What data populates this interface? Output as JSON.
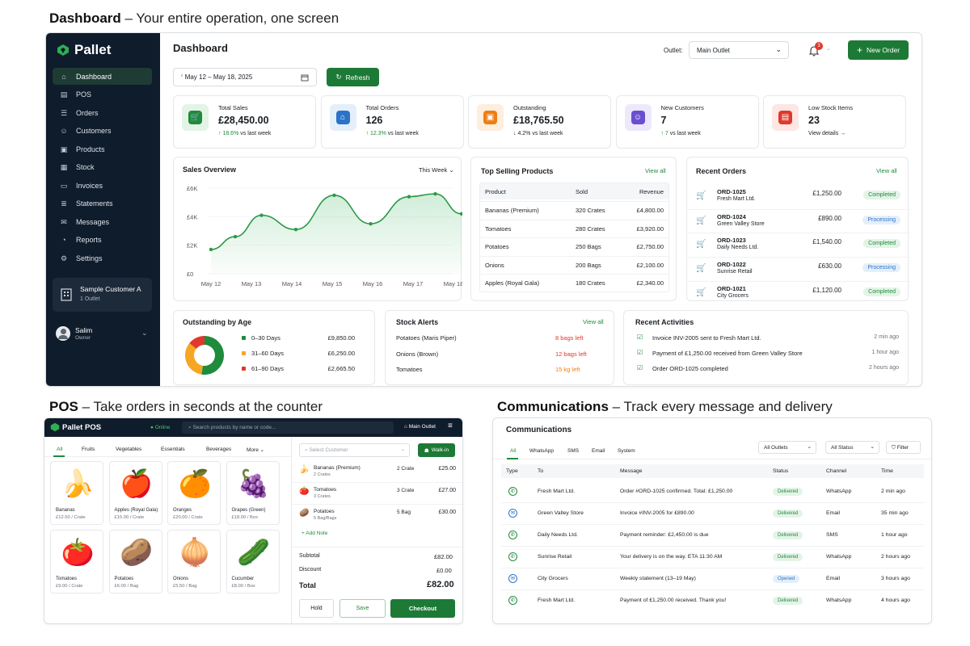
{
  "headings": {
    "dash": {
      "title": "Dashboard",
      "sub": "– Your entire operation, one screen"
    },
    "pos": {
      "title": "POS",
      "sub": "– Take orders in seconds at the counter"
    },
    "comm": {
      "title": "Communications",
      "sub": "– Track every message and delivery"
    }
  },
  "sidebar": {
    "brand": "Pallet",
    "items": [
      {
        "label": "Dashboard",
        "icon": "home-icon"
      },
      {
        "label": "POS",
        "icon": "register-icon"
      },
      {
        "label": "Orders",
        "icon": "list-icon"
      },
      {
        "label": "Customers",
        "icon": "users-icon"
      },
      {
        "label": "Products",
        "icon": "box-icon"
      },
      {
        "label": "Stock",
        "icon": "stock-icon"
      },
      {
        "label": "Invoices",
        "icon": "invoice-icon"
      },
      {
        "label": "Statements",
        "icon": "statement-icon"
      },
      {
        "label": "Messages",
        "icon": "mail-icon"
      },
      {
        "label": "Reports",
        "icon": "reports-icon"
      },
      {
        "label": "Settings",
        "icon": "gear-icon"
      }
    ],
    "customer": {
      "name": "Sample Customer A",
      "outlets": "1 Outlet"
    },
    "user": {
      "name": "Salim",
      "role": "Owner"
    }
  },
  "topbar": {
    "title": "Dashboard",
    "outlet_label": "Outlet:",
    "outlet_value": "Main Outlet",
    "notif_count": "3",
    "new_order": "New Order",
    "date_range": "May 12 – May 18, 2025",
    "refresh": "Refresh"
  },
  "kpis": [
    {
      "label": "Total Sales",
      "value": "£28,450.00",
      "delta": "↑ 18.6%",
      "note": "vs last week",
      "color": "#1f8b3c",
      "bg": "#e3f4e7",
      "icon": "cart-icon"
    },
    {
      "label": "Total Orders",
      "value": "126",
      "delta": "↑ 12.3%",
      "note": "vs last week",
      "color": "#2b73c8",
      "bg": "#e4effb",
      "icon": "orders-icon"
    },
    {
      "label": "Outstanding",
      "value": "£18,765.50",
      "delta": "↓ 4.2%",
      "note": "vs last week",
      "color": "#f07d13",
      "bg": "#fdeedd",
      "icon": "outstanding-icon"
    },
    {
      "label": "New Customers",
      "value": "7",
      "delta": "↑ 7",
      "note": "vs last week",
      "color": "#6a4fd1",
      "bg": "#ede8fb",
      "icon": "new-customer-icon"
    },
    {
      "label": "Low Stock Items",
      "value": "23",
      "delta": "",
      "note": "View details →",
      "color": "#e0382b",
      "bg": "#fde6e4",
      "icon": "low-stock-icon"
    }
  ],
  "sales": {
    "title": "Sales Overview",
    "period": "This Week"
  },
  "chart_data": {
    "type": "area",
    "x": [
      "May 12",
      "May 13",
      "May 14",
      "May 15",
      "May 16",
      "May 17",
      "May 18"
    ],
    "yticks": [
      "£0",
      "£2K",
      "£4K",
      "£6K"
    ],
    "ylim": [
      0,
      6000
    ],
    "points": [
      [
        0,
        1700
      ],
      [
        0.6,
        2600
      ],
      [
        1.25,
        4100
      ],
      [
        2.1,
        3100
      ],
      [
        3.05,
        5500
      ],
      [
        3.95,
        3500
      ],
      [
        4.9,
        5400
      ],
      [
        5.55,
        5600
      ],
      [
        6.2,
        4200
      ]
    ]
  },
  "top_products": {
    "title": "Top Selling Products",
    "link": "View all",
    "headers": [
      "Product",
      "Sold",
      "Revenue"
    ],
    "rows": [
      [
        "Bananas (Premium)",
        "320 Crates",
        "£4,800.00"
      ],
      [
        "Tomatoes",
        "280 Crates",
        "£3,920.00"
      ],
      [
        "Potatoes",
        "250 Bags",
        "£2,750.00"
      ],
      [
        "Onions",
        "200 Bags",
        "£2,100.00"
      ],
      [
        "Apples (Royal Gala)",
        "180 Crates",
        "£2,340.00"
      ]
    ]
  },
  "recent_orders": {
    "title": "Recent Orders",
    "link": "View all",
    "rows": [
      {
        "id": "ORD-1025",
        "cust": "Fresh Mart Ltd.",
        "amt": "£1,250.00",
        "status": "Completed",
        "kind": "done"
      },
      {
        "id": "ORD-1024",
        "cust": "Green Valley Store",
        "amt": "£890.00",
        "status": "Processing",
        "kind": "proc"
      },
      {
        "id": "ORD-1023",
        "cust": "Daily Needs Ltd.",
        "amt": "£1,540.00",
        "status": "Completed",
        "kind": "done"
      },
      {
        "id": "ORD-1022",
        "cust": "Sunrise Retail",
        "amt": "£630.00",
        "status": "Processing",
        "kind": "proc"
      },
      {
        "id": "ORD-1021",
        "cust": "City Grocers",
        "amt": "£1,120.00",
        "status": "Completed",
        "kind": "done"
      }
    ]
  },
  "age": {
    "title": "Outstanding by Age",
    "rows": [
      {
        "label": "0–30 Days",
        "amt": "£9,850.00",
        "color": "#1f8b3c",
        "value": 9850
      },
      {
        "label": "31–60 Days",
        "amt": "£6,250.00",
        "color": "#f5a623",
        "value": 6250
      },
      {
        "label": "61–90 Days",
        "amt": "£2,665.50",
        "color": "#e0382b",
        "value": 2665.5
      }
    ]
  },
  "stock_alerts": {
    "title": "Stock Alerts",
    "link": "View all",
    "rows": [
      {
        "name": "Potatoes (Maris Piper)",
        "qty": "8 bags left",
        "color": "#e0382b"
      },
      {
        "name": "Onions (Brown)",
        "qty": "12 bags left",
        "color": "#e0382b"
      },
      {
        "name": "Tomatoes",
        "qty": "15 kg left",
        "color": "#f07d13"
      }
    ]
  },
  "activities": {
    "title": "Recent Activities",
    "rows": [
      {
        "text": "Invoice INV-2005 sent to Fresh Mart Ltd.",
        "time": "2 min ago"
      },
      {
        "text": "Payment of £1,250.00 received from Green Valley Store",
        "time": "1 hour ago"
      },
      {
        "text": "Order ORD-1025 completed",
        "time": "2 hours ago"
      }
    ]
  },
  "pos": {
    "brand": "Pallet POS",
    "status": "Online",
    "search": "Search products by name or code...",
    "outlet": "Main Outlet",
    "cats": [
      "All",
      "Fruits",
      "Vegetables",
      "Essentials",
      "Beverages",
      "More"
    ],
    "products": [
      {
        "name": "Bananas",
        "price": "£12.50 / Crate",
        "emoji": "🍌"
      },
      {
        "name": "Apples (Royal Gala)",
        "price": "£15.00 / Crate",
        "emoji": "🍎"
      },
      {
        "name": "Oranges",
        "price": "£20.00 / Crate",
        "emoji": "🍊"
      },
      {
        "name": "Grapes (Green)",
        "price": "£18.00 / Box",
        "emoji": "🍇"
      },
      {
        "name": "Tomatoes",
        "price": "£9.00 / Crate",
        "emoji": "🍅"
      },
      {
        "name": "Potatoes",
        "price": "£6.00 / Bag",
        "emoji": "🥔"
      },
      {
        "name": "Onions",
        "price": "£5.50 / Bag",
        "emoji": "🧅"
      },
      {
        "name": "Cucumber",
        "price": "£8.00 / Box",
        "emoji": "🥒"
      }
    ],
    "select_customer": "Select Customer",
    "walkin": "Walk-in",
    "cart": [
      {
        "name": "Bananas (Premium)",
        "sub": "2 Crates",
        "qty": "2 Crate",
        "amt": "£25.00",
        "emoji": "🍌"
      },
      {
        "name": "Tomatoes",
        "sub": "3 Crates",
        "qty": "3 Crate",
        "amt": "£27.00",
        "emoji": "🍅"
      },
      {
        "name": "Potatoes",
        "sub": "5 Bag/Bags",
        "qty": "5 Bag",
        "amt": "£30.00",
        "emoji": "🥔"
      }
    ],
    "add_note": "Add Note",
    "subtotal_label": "Subtotal",
    "subtotal": "£82.00",
    "discount_label": "Discount",
    "discount": "£0.00",
    "total_label": "Total",
    "total": "£82.00",
    "hold": "Hold",
    "save": "Save",
    "checkout": "Checkout"
  },
  "comm": {
    "title": "Communications",
    "tabs": [
      "All",
      "WhatsApp",
      "SMS",
      "Email",
      "System"
    ],
    "outlets": "All Outlets",
    "status": "All Status",
    "filter": "Filter",
    "headers": [
      "Type",
      "To",
      "Message",
      "Status",
      "Channel",
      "Time"
    ],
    "rows": [
      {
        "kind": "whatsapp",
        "to": "Fresh Mart Ltd.",
        "msg": "Order #ORD-1025 confirmed. Total: £1,250.00",
        "status": "Delivered",
        "channel": "WhatsApp",
        "time": "2 min ago"
      },
      {
        "kind": "email",
        "to": "Green Valley Store",
        "msg": "Invoice #INV-2005 for £890.00",
        "status": "Delivered",
        "channel": "Email",
        "time": "35 min ago"
      },
      {
        "kind": "sms",
        "to": "Daily Needs Ltd.",
        "msg": "Payment reminder: £2,450.00 is due",
        "status": "Delivered",
        "channel": "SMS",
        "time": "1 hour ago"
      },
      {
        "kind": "whatsapp",
        "to": "Sunrise Retail",
        "msg": "Your delivery is on the way. ETA 11:30 AM",
        "status": "Delivered",
        "channel": "WhatsApp",
        "time": "2 hours ago"
      },
      {
        "kind": "email",
        "to": "City Grocers",
        "msg": "Weekly statement (13–19 May)",
        "status": "Opened",
        "channel": "Email",
        "time": "3 hours ago"
      },
      {
        "kind": "whatsapp",
        "to": "Fresh Mart Ltd.",
        "msg": "Payment of £1,250.00 received. Thank you!",
        "status": "Delivered",
        "channel": "WhatsApp",
        "time": "4 hours ago"
      }
    ]
  }
}
